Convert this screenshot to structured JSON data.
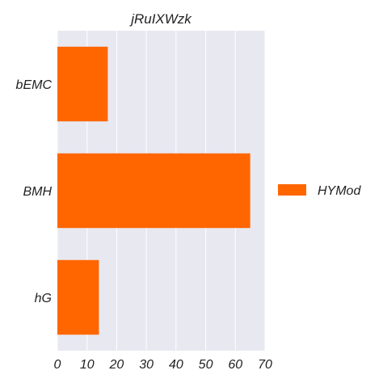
{
  "chart_data": {
    "type": "bar",
    "orientation": "horizontal",
    "title": "jRuIXWzk",
    "xlabel": "",
    "ylabel": "",
    "categories": [
      "bEMC",
      "BMH",
      "hG"
    ],
    "series": [
      {
        "name": "HYMod",
        "values": [
          17,
          65,
          14
        ],
        "color": "#ff6600"
      }
    ],
    "xlim": [
      0,
      70
    ],
    "xticks": [
      0,
      10,
      20,
      30,
      40,
      50,
      60,
      70
    ],
    "grid": true,
    "legend_position": "right",
    "plot_background": "#e8e8f0"
  }
}
